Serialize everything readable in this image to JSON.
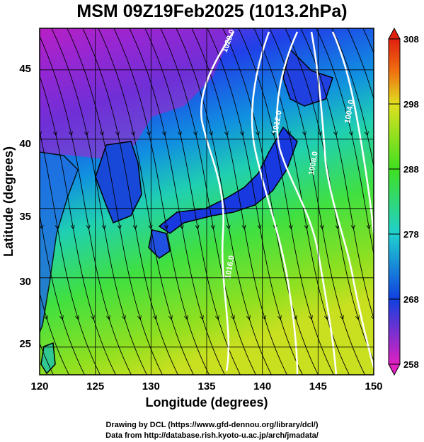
{
  "title": "MSM 09Z19Feb2025 (1013.2hPa)",
  "xlabel": "Longitude (degrees)",
  "ylabel": "Latitude  (degrees)",
  "xticks": [
    "120",
    "125",
    "130",
    "135",
    "140",
    "145",
    "150"
  ],
  "yticks": [
    "25",
    "30",
    "35",
    "40",
    "45"
  ],
  "colorbar_ticks": [
    "308",
    "298",
    "288",
    "278",
    "268",
    "258"
  ],
  "isobar_labels": [
    "1020.0",
    "1016.0",
    "1012.0",
    "1008.0",
    "1004.0"
  ],
  "credit_line_1": "Drawing by DCL (https://www.gfd-dennou.org/library/dcl/)",
  "credit_line_2": "Data from http://database.rish.kyoto-u.ac.jp/arch/jmadata/",
  "colors": {
    "cold": "#d020c0",
    "cool": "#1040e0",
    "mild": "#20c0c0",
    "warm": "#40e020",
    "hot": "#c0e020",
    "isobar": "#ffffff",
    "land_outline": "#000000"
  },
  "chart_data": {
    "type": "heatmap",
    "title": "MSM 09Z19Feb2025 (1013.2hPa)",
    "xlabel": "Longitude (degrees)",
    "ylabel": "Latitude  (degrees)",
    "xlim": [
      120,
      150
    ],
    "ylim": [
      23,
      48
    ],
    "colorbar_range": [
      258,
      308
    ],
    "colorbar_ticks": [
      258,
      268,
      278,
      288,
      298,
      308
    ],
    "grid": true,
    "isobars": [
      1020.0,
      1016.0,
      1012.0,
      1008.0,
      1004.0
    ]
  }
}
